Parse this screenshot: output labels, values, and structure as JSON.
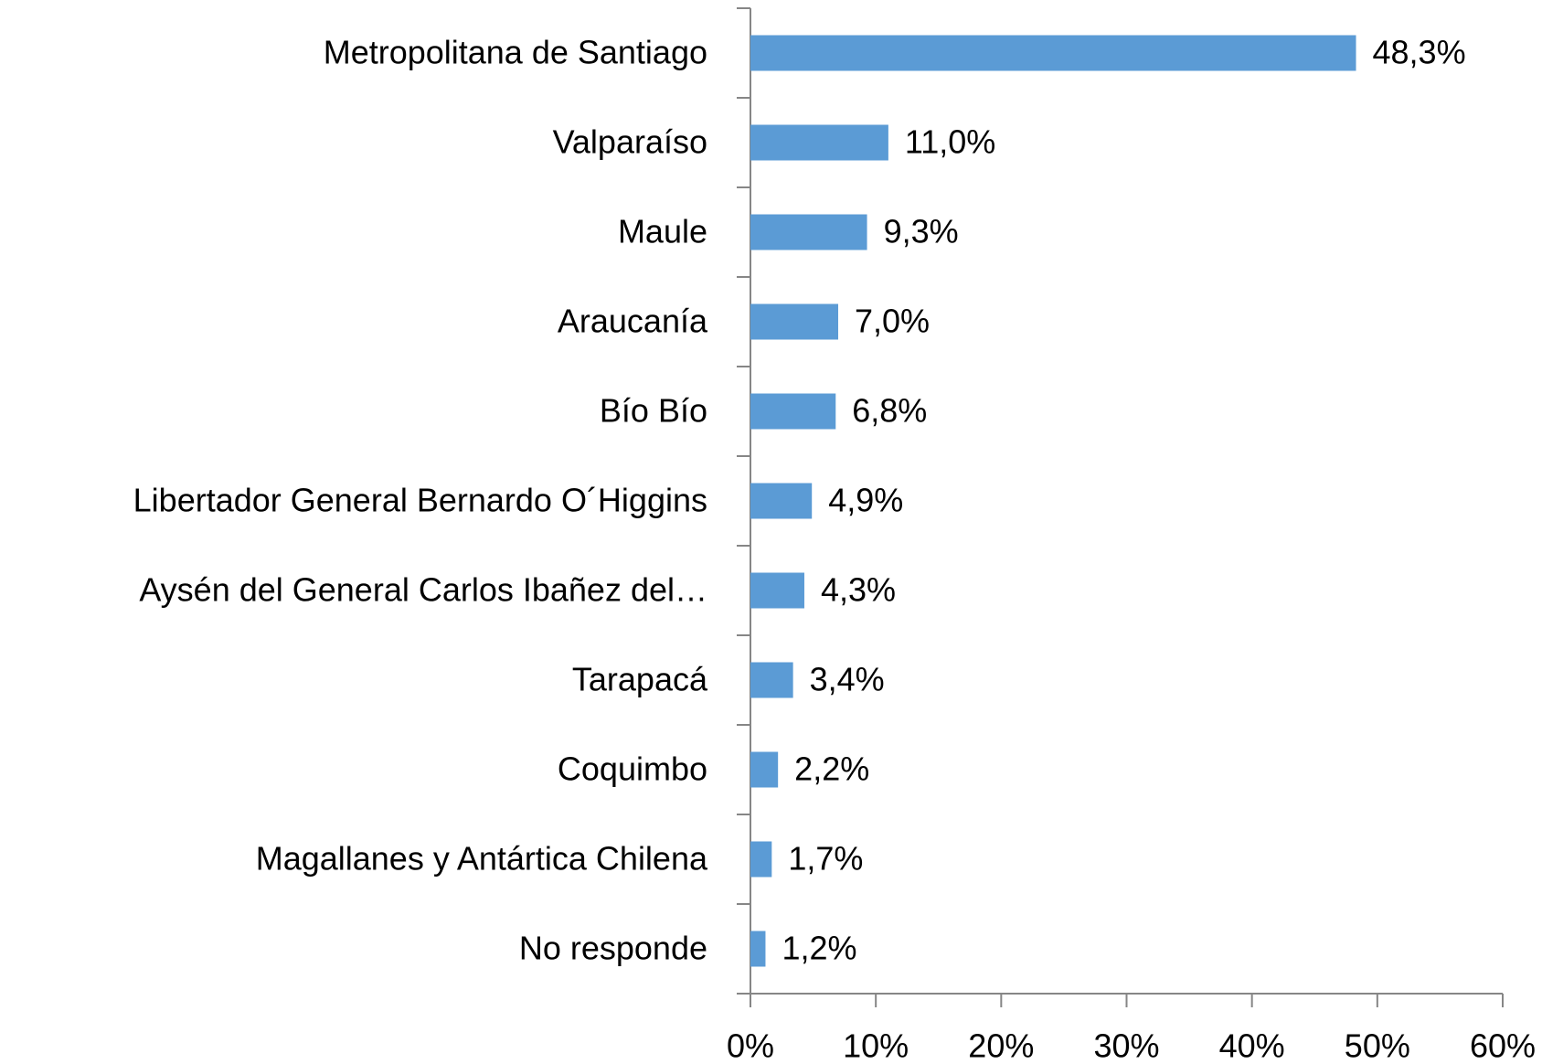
{
  "chart_data": {
    "type": "bar",
    "orientation": "horizontal",
    "categories": [
      "Metropolitana  de Santiago",
      "Valparaíso",
      "Maule",
      "Araucanía",
      "Bío Bío",
      "Libertador General Bernardo O´Higgins",
      "Aysén del General Carlos Ibañez del…",
      "Tarapacá",
      "Coquimbo",
      "Magallanes y Antártica Chilena",
      "No responde"
    ],
    "values": [
      48.3,
      11.0,
      9.3,
      7.0,
      6.8,
      4.9,
      4.3,
      3.4,
      2.2,
      1.7,
      1.2
    ],
    "value_labels": [
      "48,3%",
      "11,0%",
      "9,3%",
      "7,0%",
      "6,8%",
      "4,9%",
      "4,3%",
      "3,4%",
      "2,2%",
      "1,7%",
      "1,2%"
    ],
    "color": "#5b9bd5",
    "xlim": [
      0,
      60
    ],
    "xticks": [
      {
        "value": 0,
        "label": "0%"
      },
      {
        "value": 10,
        "label": "10%"
      },
      {
        "value": 20,
        "label": "20%"
      },
      {
        "value": 30,
        "label": "30%"
      },
      {
        "value": 40,
        "label": "40%"
      },
      {
        "value": 50,
        "label": "50%"
      },
      {
        "value": 60,
        "label": "60%"
      }
    ],
    "grid": false
  }
}
